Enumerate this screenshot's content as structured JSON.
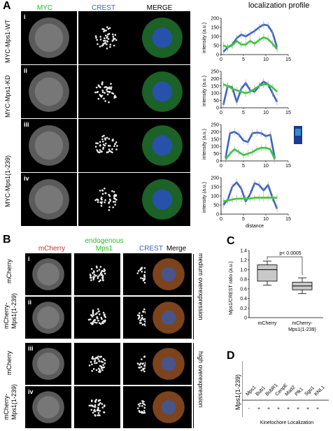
{
  "panelA": {
    "label": "A",
    "headers": [
      "MYC",
      "CREST",
      "MERGE"
    ],
    "header_colors": [
      "#22c41f",
      "#3a62c8",
      "#000000"
    ],
    "profile_title": "localization profile",
    "rows": [
      {
        "roman": "i",
        "label": "MYC-Mps1-WT"
      },
      {
        "roman": "ii",
        "label": "MYC-Mps1-KD"
      },
      {
        "roman": "iii",
        "label": ""
      },
      {
        "roman": "iv",
        "label": ""
      }
    ],
    "shared_label": "MYC-Mps1(1-239)",
    "y_axis_label": "intensity (a.u.)",
    "x_axis_label": "distance"
  },
  "panelB": {
    "label": "B",
    "headers": [
      "mCherry",
      "endogenous",
      "Mps1",
      "CREST",
      "Merge"
    ],
    "rows": [
      {
        "roman": "i",
        "label1": "mCherry",
        "label2": ""
      },
      {
        "roman": "ii",
        "label1": "mCherry-",
        "label2": "Mps1(1-239)"
      },
      {
        "roman": "iii",
        "label1": "mCherry",
        "label2": ""
      },
      {
        "roman": "iv",
        "label1": "mCherry-",
        "label2": "Mps1(1-239)"
      }
    ],
    "side_labels": [
      "medium overexpression",
      "high overexpression"
    ]
  },
  "panelC": {
    "label": "C"
  },
  "panelD": {
    "label": "D",
    "row_label": "Mps1(1-239)",
    "columns": [
      "Mps1",
      "Bub1",
      "BubR1",
      "CenpE",
      "Mad2",
      "Plk1",
      "Sgo1",
      "KNL1"
    ],
    "values": [
      "-",
      "+",
      "+",
      "+",
      "+",
      "+",
      "+",
      "+"
    ],
    "x_label": "Kinetochore Localization"
  },
  "chart_data": [
    {
      "type": "line",
      "panel": "A-i",
      "xlabel": "",
      "ylabel": "intensity (a.u.)",
      "xlim": [
        0,
        15
      ],
      "ylim": [
        0,
        200
      ],
      "xticks": [
        0,
        5,
        10,
        15
      ],
      "yticks": [
        0,
        50,
        100,
        150,
        200
      ],
      "series": [
        {
          "color": "#3a62c8",
          "x": [
            0.5,
            1.5,
            2.5,
            3.5,
            4.5,
            5.5,
            6.5,
            7.5,
            8.5,
            9.5,
            10.5,
            11.5,
            12.5
          ],
          "y": [
            15,
            40,
            55,
            90,
            110,
            100,
            115,
            130,
            150,
            165,
            160,
            120,
            40
          ]
        },
        {
          "color": "#33cc33",
          "x": [
            0.5,
            1.5,
            2.5,
            3.5,
            4.5,
            5.5,
            6.5,
            7.5,
            8.5,
            9.5,
            10.5,
            11.5,
            12.5
          ],
          "y": [
            50,
            40,
            50,
            75,
            55,
            55,
            75,
            60,
            80,
            95,
            85,
            60,
            30
          ]
        }
      ]
    },
    {
      "type": "line",
      "panel": "A-ii",
      "xlabel": "",
      "ylabel": "intensity (a.u.)",
      "xlim": [
        0,
        15
      ],
      "ylim": [
        0,
        250
      ],
      "xticks": [
        0,
        5,
        10,
        15
      ],
      "yticks": [
        0,
        50,
        100,
        150,
        200,
        250
      ],
      "series": [
        {
          "color": "#3a62c8",
          "x": [
            0.5,
            1.5,
            2.5,
            3.5,
            4.5,
            5.5,
            6.5,
            7.5,
            8.5,
            9.5,
            10.5,
            11.5,
            12.5
          ],
          "y": [
            20,
            150,
            140,
            40,
            130,
            170,
            120,
            110,
            150,
            180,
            160,
            100,
            40
          ]
        },
        {
          "color": "#33cc33",
          "x": [
            0.5,
            1.5,
            2.5,
            3.5,
            4.5,
            5.5,
            6.5,
            7.5,
            8.5,
            9.5,
            10.5,
            11.5,
            12.5
          ],
          "y": [
            160,
            150,
            130,
            120,
            110,
            100,
            110,
            130,
            150,
            160,
            160,
            140,
            110
          ]
        }
      ]
    },
    {
      "type": "line",
      "panel": "A-iii",
      "xlabel": "",
      "ylabel": "intensity (a.u.)",
      "xlim": [
        0,
        15
      ],
      "ylim": [
        0,
        250
      ],
      "xticks": [
        0,
        5,
        10,
        15
      ],
      "yticks": [
        0,
        50,
        100,
        150,
        200,
        250
      ],
      "series": [
        {
          "color": "#3a62c8",
          "x": [
            1,
            2,
            3,
            4,
            5,
            6,
            7,
            8,
            9,
            10,
            11,
            12
          ],
          "y": [
            20,
            190,
            200,
            180,
            140,
            130,
            190,
            195,
            190,
            170,
            180,
            20
          ]
        },
        {
          "color": "#33cc33",
          "x": [
            1,
            2,
            3,
            4,
            5,
            6,
            7,
            8,
            9,
            10,
            11,
            12
          ],
          "y": [
            10,
            50,
            80,
            60,
            40,
            50,
            60,
            80,
            90,
            90,
            80,
            10
          ]
        }
      ]
    },
    {
      "type": "line",
      "panel": "A-iv",
      "xlabel": "distance",
      "ylabel": "intensity (a.u.)",
      "xlim": [
        0,
        15
      ],
      "ylim": [
        0,
        200
      ],
      "xticks": [
        0,
        5,
        10,
        15
      ],
      "yticks": [
        0,
        50,
        100,
        150,
        200
      ],
      "series": [
        {
          "color": "#3a62c8",
          "x": [
            0.5,
            1.5,
            2.5,
            3.5,
            4.5,
            5.5,
            6.5,
            7.5,
            8.5,
            9.5,
            10.5,
            11.5,
            12.5
          ],
          "y": [
            50,
            80,
            150,
            175,
            140,
            70,
            110,
            170,
            160,
            130,
            160,
            90,
            30
          ]
        },
        {
          "color": "#33cc33",
          "x": [
            0.5,
            1.5,
            2.5,
            3.5,
            4.5,
            5.5,
            6.5,
            7.5,
            8.5,
            9.5,
            10.5,
            11.5,
            12.5
          ],
          "y": [
            70,
            75,
            80,
            85,
            85,
            85,
            85,
            90,
            90,
            90,
            90,
            90,
            90
          ]
        }
      ]
    },
    {
      "type": "box",
      "panel": "C",
      "ylabel": "Mps1/CREST ratio (a.u.)",
      "ylim": [
        0,
        1.4
      ],
      "yticks": [
        0,
        0.2,
        0.4,
        0.6,
        0.8,
        1.0,
        1.2,
        1.4
      ],
      "categories": [
        "mCherry",
        "mCherry-\nMps1(1-239)"
      ],
      "boxes": [
        {
          "min": 0.68,
          "q1": 0.76,
          "median": 1.0,
          "q3": 1.1,
          "max": 1.18
        },
        {
          "min": 0.5,
          "q1": 0.58,
          "median": 0.66,
          "q3": 0.74,
          "max": 0.83
        }
      ],
      "annotation": "p< 0.0005"
    }
  ]
}
